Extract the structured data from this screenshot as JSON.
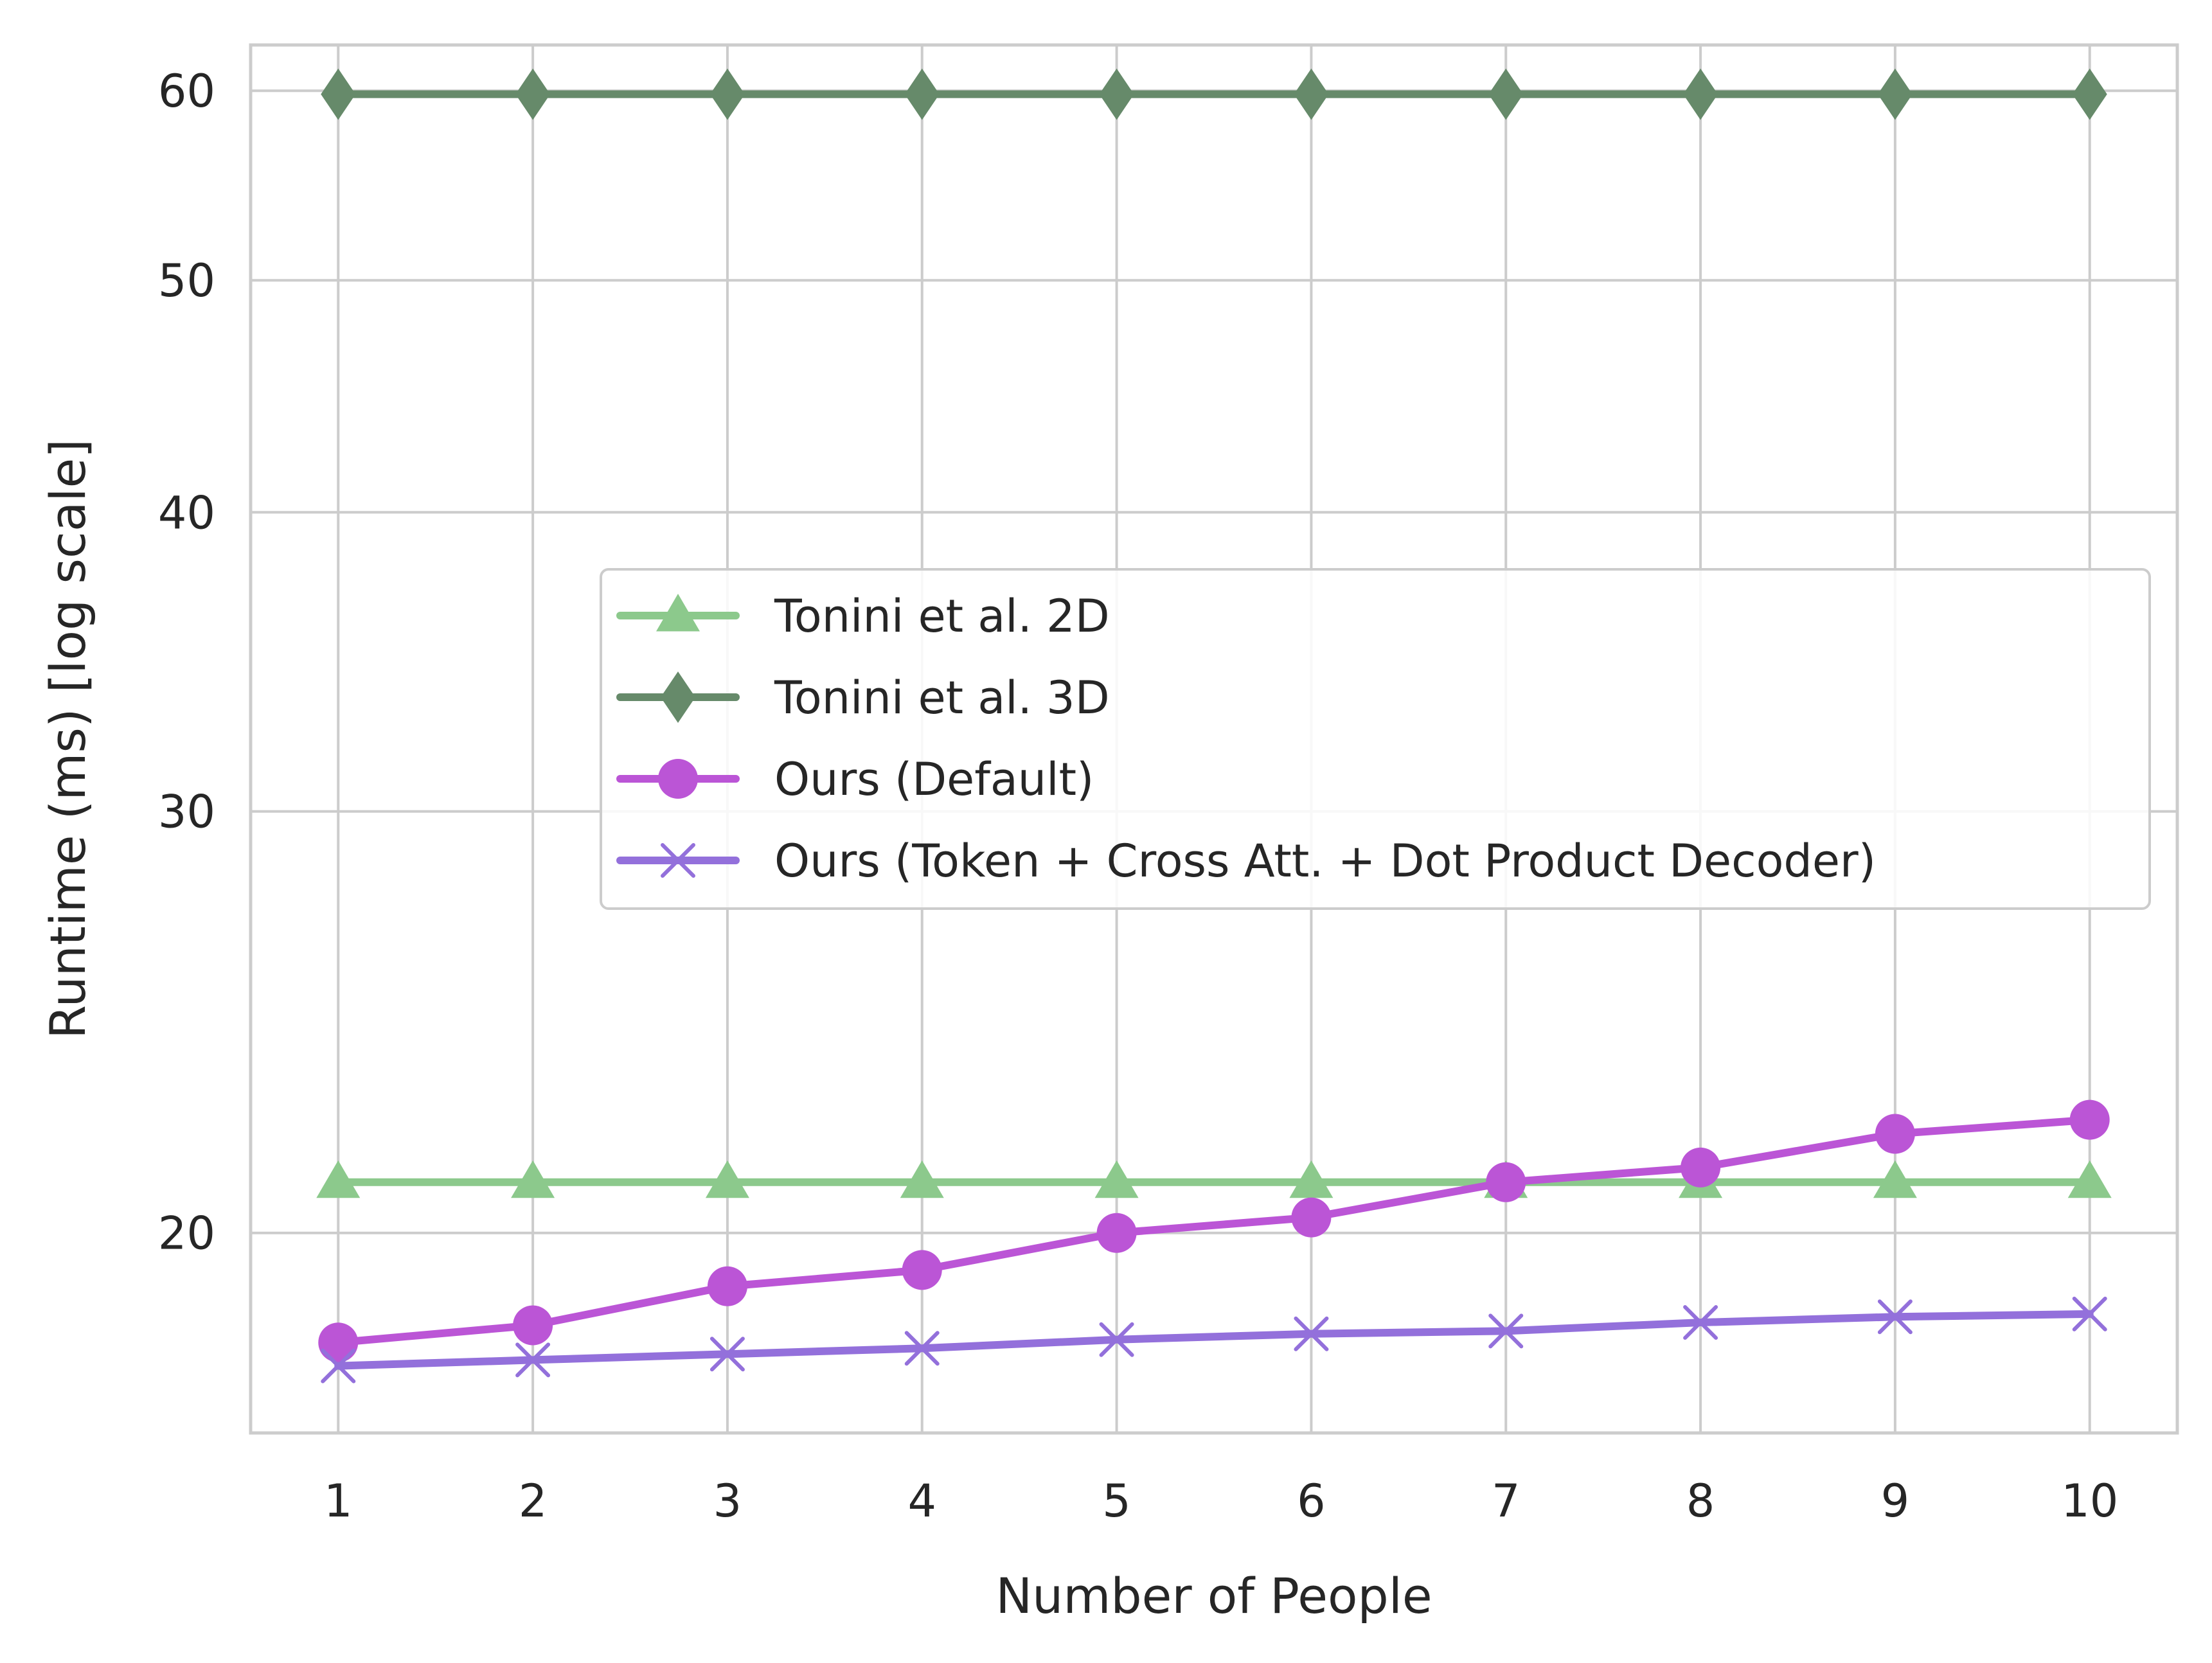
{
  "chart_data": {
    "type": "line",
    "xlabel": "Number of People",
    "ylabel": "Runtime (ms) [log scale]",
    "y_scale": "log",
    "x": [
      1,
      2,
      3,
      4,
      5,
      6,
      7,
      8,
      9,
      10
    ],
    "x_ticks": [
      "1",
      "2",
      "3",
      "4",
      "5",
      "6",
      "7",
      "8",
      "9",
      "10"
    ],
    "xlim": [
      0.55,
      10.45
    ],
    "y_ticks": [
      {
        "value": 20,
        "label": "20"
      },
      {
        "value": 30,
        "label": "30"
      },
      {
        "value": 40,
        "label": "40"
      },
      {
        "value": 50,
        "label": "50"
      },
      {
        "value": 60,
        "label": "60"
      }
    ],
    "ylim": [
      16.5,
      62.7
    ],
    "grid": true,
    "legend_position": "center-right",
    "series": [
      {
        "name": "Tonini et al. 2D",
        "marker": "triangle",
        "color": "#8cc98c",
        "values": [
          21.0,
          21.0,
          21.0,
          21.0,
          21.0,
          21.0,
          21.0,
          21.0,
          21.0,
          21.0
        ]
      },
      {
        "name": "Tonini et al. 3D",
        "marker": "diamond",
        "color": "#668a6a",
        "values": [
          59.8,
          59.8,
          59.8,
          59.8,
          59.8,
          59.8,
          59.8,
          59.8,
          59.8,
          59.8
        ]
      },
      {
        "name": "Ours (Default)",
        "marker": "circle",
        "color": "#bb55d6",
        "values": [
          18.0,
          18.3,
          19.0,
          19.3,
          20.0,
          20.3,
          21.0,
          21.3,
          22.0,
          22.3
        ]
      },
      {
        "name": "Ours (Token + Cross Att. + Dot Product Decoder)",
        "marker": "x",
        "color": "#9370db",
        "values": [
          17.6,
          17.7,
          17.8,
          17.9,
          18.05,
          18.15,
          18.2,
          18.35,
          18.45,
          18.5
        ]
      }
    ]
  }
}
